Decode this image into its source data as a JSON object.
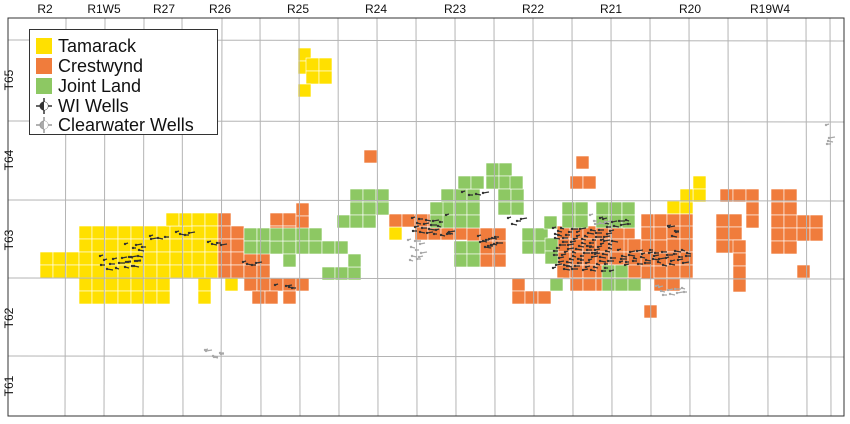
{
  "colors": {
    "tamarack": "#ffe000",
    "crestwynd": "#f07c3c",
    "joint_land": "#8dc863",
    "wi_wells": "#333333",
    "clearwater_wells": "#a8a8a8",
    "grid": "#b4b4b4",
    "frame": "#333333"
  },
  "ranges": [
    "R2",
    "R1W5",
    "R27",
    "R26",
    "R25",
    "R24",
    "R23",
    "R22",
    "R21",
    "R20",
    "R19W4"
  ],
  "townships": [
    "T65",
    "T64",
    "T63",
    "T62",
    "T61"
  ],
  "legend": {
    "items": [
      {
        "label": "Tamarack",
        "key": "tamarack",
        "symbol": "square"
      },
      {
        "label": "Crestwynd",
        "key": "crestwynd",
        "symbol": "square"
      },
      {
        "label": "Joint Land",
        "key": "joint_land",
        "symbol": "square"
      },
      {
        "label": "WI Wells",
        "key": "wi_wells",
        "symbol": "well"
      },
      {
        "label": "Clearwater Wells",
        "key": "clearwater_wells",
        "symbol": "well"
      }
    ]
  }
}
